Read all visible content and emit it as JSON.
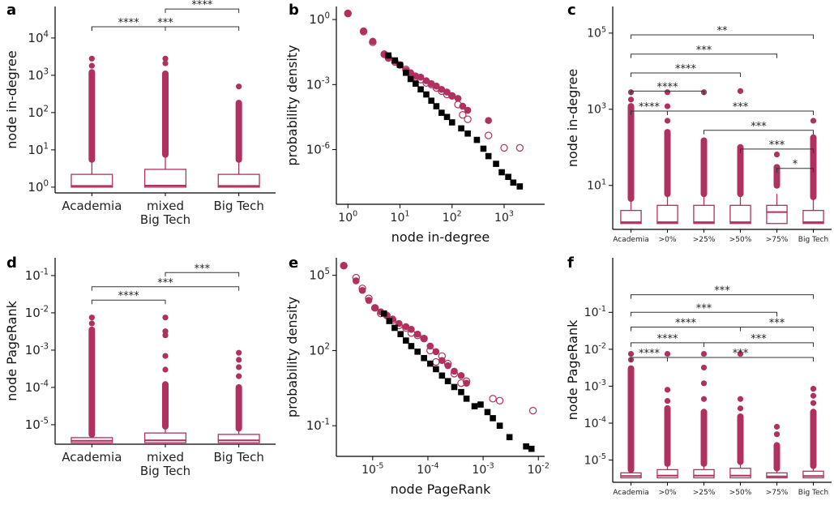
{
  "colors": {
    "accent": "#b03060",
    "black": "#000000"
  },
  "chart_data": [
    {
      "panel": "a",
      "type": "boxplot",
      "categories": [
        "Academia",
        "mixed\nBig Tech",
        "Big Tech"
      ],
      "ylabel": "node in-degree",
      "log": true,
      "ylim": [
        0.7,
        70000
      ],
      "yticks": [
        1,
        10,
        100,
        1000,
        10000
      ],
      "ytick_labels": [
        [
          "10",
          "0"
        ],
        [
          "10",
          "1"
        ],
        [
          "10",
          "2"
        ],
        [
          "10",
          "3"
        ],
        [
          "10",
          "4"
        ]
      ],
      "boxes": [
        {
          "q1": 1.0,
          "med": 1.08,
          "q3": 2.2,
          "wlo": 1.0,
          "whi": 5.5,
          "out_lo": 5.5,
          "out_hi": 1200,
          "extra": [
            1800,
            2800
          ]
        },
        {
          "q1": 1.0,
          "med": 1.1,
          "q3": 3.0,
          "wlo": 1.0,
          "whi": 7.5,
          "out_lo": 7.5,
          "out_hi": 1100,
          "extra": [
            2100,
            2800
          ]
        },
        {
          "q1": 1.0,
          "med": 1.08,
          "q3": 2.2,
          "wlo": 1.0,
          "whi": 5.5,
          "out_lo": 5.5,
          "out_hi": 180,
          "extra": [
            500
          ]
        }
      ],
      "brackets": [
        {
          "from": 0,
          "to": 1,
          "y": 20000.0,
          "label": "****"
        },
        {
          "from": 0,
          "to": 2,
          "y": 20000.0,
          "label": "***"
        },
        {
          "from": 1,
          "to": 2,
          "y": 60000.0,
          "label": "****"
        }
      ]
    },
    {
      "panel": "b",
      "type": "scatter",
      "xlabel": "node in-degree",
      "ylabel": "probability density",
      "xlog": true,
      "ylog": true,
      "xlim": [
        0.6,
        6000
      ],
      "ylim": [
        3e-09,
        4
      ],
      "xticks": [
        1,
        10,
        100,
        1000
      ],
      "xtick_labels": [
        [
          "10",
          "0"
        ],
        [
          "10",
          "1"
        ],
        [
          "10",
          "2"
        ],
        [
          "10",
          "3"
        ]
      ],
      "yticks": [
        1,
        0.001,
        1e-06
      ],
      "ytick_labels": [
        [
          "10",
          "0"
        ],
        [
          "10",
          "-3"
        ],
        [
          "10",
          "-6"
        ]
      ],
      "series": [
        {
          "marker": "filled-circle",
          "x": [
            1,
            2,
            3,
            5,
            6,
            8,
            10,
            13,
            16,
            20,
            25,
            32,
            40,
            50,
            63,
            80,
            100,
            130,
            160,
            200,
            500
          ],
          "y": [
            2.0,
            0.3,
            0.1,
            0.026,
            0.018,
            0.012,
            0.008,
            0.0045,
            0.0035,
            0.0025,
            0.0022,
            0.0015,
            0.0011,
            0.00085,
            0.0006,
            0.00045,
            0.0003,
            0.00023,
            0.0001,
            6.5e-05,
            2.2e-05
          ]
        },
        {
          "marker": "open-circle",
          "x": [
            1,
            2,
            3,
            5,
            6,
            8,
            10,
            13,
            16,
            20,
            25,
            32,
            40,
            50,
            63,
            80,
            100,
            130,
            160,
            200,
            500,
            1000,
            2000
          ],
          "y": [
            1.9,
            0.28,
            0.09,
            0.025,
            0.017,
            0.011,
            0.008,
            0.005,
            0.0032,
            0.0022,
            0.0017,
            0.0012,
            0.001,
            0.0007,
            0.0005,
            0.00035,
            0.0003,
            0.00012,
            4e-05,
            2.5e-05,
            4.5e-06,
            1.2e-06,
            1.2e-06
          ]
        },
        {
          "marker": "filled-square",
          "x": [
            6,
            8,
            10,
            13,
            16,
            20,
            25,
            32,
            40,
            50,
            63,
            80,
            100,
            150,
            200,
            300,
            400,
            500,
            700,
            900,
            1200,
            1500,
            2000
          ],
          "y": [
            0.022,
            0.013,
            0.008,
            0.0035,
            0.0018,
            0.0011,
            0.0006,
            0.00035,
            0.00018,
            0.0001,
            5e-05,
            3.2e-05,
            1.8e-05,
            9.5e-06,
            5.5e-06,
            2.8e-06,
            1.1e-06,
            5e-07,
            2.2e-07,
            9e-08,
            5.5e-08,
            3e-08,
            2e-08
          ]
        }
      ]
    },
    {
      "panel": "c",
      "type": "boxplot",
      "categories": [
        "Academia",
        ">0%",
        ">25%",
        ">50%",
        ">75%",
        "Big Tech"
      ],
      "ylabel": "node in-degree",
      "log": true,
      "ylim": [
        0.7,
        500000
      ],
      "yticks": [
        10,
        1000,
        100000
      ],
      "ytick_labels": [
        [
          "10",
          "1"
        ],
        [
          "10",
          "3"
        ],
        [
          "10",
          "5"
        ]
      ],
      "boxes": [
        {
          "q1": 1.0,
          "med": 1.08,
          "q3": 2.2,
          "wlo": 1.0,
          "whi": 4.5,
          "out_lo": 4.5,
          "out_hi": 1200,
          "extra": [
            1800,
            2800
          ]
        },
        {
          "q1": 1.0,
          "med": 1.08,
          "q3": 3.0,
          "wlo": 1.0,
          "whi": 6.0,
          "out_lo": 6.0,
          "out_hi": 250,
          "extra": [
            500,
            1200,
            2800
          ]
        },
        {
          "q1": 1.0,
          "med": 1.08,
          "q3": 3.0,
          "wlo": 1.0,
          "whi": 6.0,
          "out_lo": 6.0,
          "out_hi": 150,
          "extra": [
            2800
          ]
        },
        {
          "q1": 1.0,
          "med": 1.08,
          "q3": 3.0,
          "wlo": 1.0,
          "whi": 6.0,
          "out_lo": 6.0,
          "out_hi": 100,
          "extra": [
            3000
          ]
        },
        {
          "q1": 1.0,
          "med": 2.0,
          "q3": 3.0,
          "wlo": 1.0,
          "whi": 6.0,
          "out_lo": 10,
          "out_hi": 30,
          "extra": [
            65
          ]
        },
        {
          "q1": 1.0,
          "med": 1.08,
          "q3": 2.2,
          "wlo": 1.0,
          "whi": 5.0,
          "out_lo": 5.0,
          "out_hi": 180,
          "extra": [
            500
          ]
        }
      ],
      "brackets": [
        {
          "from": 0,
          "to": 1,
          "y": 900,
          "label": "****"
        },
        {
          "from": 0,
          "to": 2,
          "y": 3000,
          "label": "****"
        },
        {
          "from": 0,
          "to": 3,
          "y": 9000,
          "label": "****"
        },
        {
          "from": 0,
          "to": 4,
          "y": 28000,
          "label": "***"
        },
        {
          "from": 0,
          "to": 5,
          "y": 90000,
          "label": "**"
        },
        {
          "from": 1,
          "to": 5,
          "y": 900,
          "label": "***"
        },
        {
          "from": 2,
          "to": 5,
          "y": 280,
          "label": "***"
        },
        {
          "from": 3,
          "to": 5,
          "y": 90,
          "label": "***"
        },
        {
          "from": 4,
          "to": 5,
          "y": 28,
          "label": "*"
        }
      ]
    },
    {
      "panel": "d",
      "type": "boxplot",
      "categories": [
        "Academia",
        "mixed\nBig Tech",
        "Big Tech"
      ],
      "ylabel": "node PageRank",
      "log": true,
      "ylim": [
        3e-06,
        0.3
      ],
      "yticks": [
        1e-05,
        0.0001,
        0.001,
        0.01,
        0.1
      ],
      "ytick_labels": [
        [
          "10",
          "-5"
        ],
        [
          "10",
          "-4"
        ],
        [
          "10",
          "-3"
        ],
        [
          "10",
          "-2"
        ],
        [
          "10",
          "-1"
        ]
      ],
      "boxes": [
        {
          "q1": 3.3e-06,
          "med": 3.7e-06,
          "q3": 4.5e-06,
          "wlo": 3.3e-06,
          "whi": 5.5e-06,
          "out_lo": 5.5e-06,
          "out_hi": 0.0035,
          "extra": [
            0.0052,
            0.0075
          ]
        },
        {
          "q1": 3.3e-06,
          "med": 3.8e-06,
          "q3": 6e-06,
          "wlo": 3.3e-06,
          "whi": 9e-06,
          "out_lo": 9e-06,
          "out_hi": 0.00012,
          "extra": [
            0.0003,
            0.0007,
            0.0025,
            0.0032,
            0.0075
          ]
        },
        {
          "q1": 3.3e-06,
          "med": 3.8e-06,
          "q3": 5.5e-06,
          "wlo": 3.3e-06,
          "whi": 8e-06,
          "out_lo": 8e-06,
          "out_hi": 0.0001,
          "extra": [
            0.0002,
            0.00035,
            0.00055,
            0.00085
          ]
        }
      ],
      "brackets": [
        {
          "from": 0,
          "to": 1,
          "y": 0.022,
          "label": "****"
        },
        {
          "from": 0,
          "to": 2,
          "y": 0.05,
          "label": "***"
        },
        {
          "from": 1,
          "to": 2,
          "y": 0.12,
          "label": "***"
        }
      ]
    },
    {
      "panel": "e",
      "type": "scatter",
      "xlabel": "node PageRank",
      "ylabel": "probability density",
      "xlog": true,
      "ylog": true,
      "xlim": [
        2.2e-06,
        0.013
      ],
      "ylim": [
        0.006,
        500000
      ],
      "xticks": [
        1e-05,
        0.0001,
        0.001,
        0.01
      ],
      "xtick_labels": [
        [
          "10",
          "-5"
        ],
        [
          "10",
          "-4"
        ],
        [
          "10",
          "-3"
        ],
        [
          "10",
          "-2"
        ]
      ],
      "yticks": [
        100000,
        100,
        0.1
      ],
      "ytick_labels": [
        [
          "10",
          "5"
        ],
        [
          "10",
          "2"
        ],
        [
          "10",
          "-1"
        ]
      ],
      "series": [
        {
          "marker": "filled-circle",
          "x": [
            3e-06,
            5e-06,
            6.5e-06,
            8.5e-06,
            1.1e-05,
            1.4e-05,
            1.8e-05,
            2.3e-05,
            3e-05,
            4e-05,
            5e-05,
            6.5e-05,
            8.5e-05,
            0.00011,
            0.00014,
            0.00018,
            0.00023,
            0.0003,
            0.0004,
            0.0005
          ],
          "y": [
            250000,
            60000,
            25000,
            10000,
            5000,
            3500,
            2500,
            1800,
            1200,
            900,
            700,
            450,
            300,
            150,
            90,
            40,
            25,
            15,
            10,
            5
          ]
        },
        {
          "marker": "open-circle",
          "x": [
            3e-06,
            5e-06,
            6.5e-06,
            8.5e-06,
            1.1e-05,
            1.4e-05,
            1.8e-05,
            2.3e-05,
            3e-05,
            4e-05,
            5e-05,
            6.5e-05,
            8.5e-05,
            0.00011,
            0.00014,
            0.00018,
            0.00023,
            0.0003,
            0.0004,
            0.0005,
            0.0015,
            0.002,
            0.008
          ],
          "y": [
            240000,
            80000,
            30000,
            12000,
            5000,
            3000,
            2500,
            1600,
            1000,
            800,
            500,
            400,
            300,
            100,
            35,
            60,
            30,
            12,
            5,
            6,
            1.2,
            1.0,
            0.4
          ]
        },
        {
          "marker": "filled-square",
          "x": [
            1.6e-05,
            2e-05,
            2.5e-05,
            3.2e-05,
            4e-05,
            5e-05,
            6.5e-05,
            8.5e-05,
            0.00011,
            0.00014,
            0.00018,
            0.00023,
            0.0003,
            0.0004,
            0.0005,
            0.0007,
            0.0009,
            0.0012,
            0.0015,
            0.002,
            0.003,
            0.006,
            0.0075
          ],
          "y": [
            3000,
            1500,
            800,
            450,
            250,
            150,
            90,
            50,
            30,
            18,
            10,
            6,
            3.5,
            2.2,
            1.2,
            0.6,
            0.7,
            0.35,
            0.2,
            0.1,
            0.035,
            0.015,
            0.012
          ]
        }
      ]
    },
    {
      "panel": "f",
      "type": "boxplot",
      "categories": [
        "Academia",
        ">0%",
        ">25%",
        ">50%",
        ">75%",
        "Big Tech"
      ],
      "ylabel": "node PageRank",
      "log": true,
      "ylim": [
        2.5e-06,
        3
      ],
      "yticks": [
        1e-05,
        0.0001,
        0.001,
        0.01,
        0.1
      ],
      "ytick_labels": [
        [
          "10",
          "-5"
        ],
        [
          "10",
          "-4"
        ],
        [
          "10",
          "-3"
        ],
        [
          "10",
          "-2"
        ],
        [
          "10",
          "-1"
        ]
      ],
      "boxes": [
        {
          "q1": 3.3e-06,
          "med": 3.7e-06,
          "q3": 4.5e-06,
          "wlo": 3.3e-06,
          "whi": 5.5e-06,
          "out_lo": 5.5e-06,
          "out_hi": 0.003,
          "extra": [
            0.0052,
            0.0075
          ]
        },
        {
          "q1": 3.3e-06,
          "med": 3.8e-06,
          "q3": 5.5e-06,
          "wlo": 3.3e-06,
          "whi": 8e-06,
          "out_lo": 8e-06,
          "out_hi": 0.00025,
          "extra": [
            0.0004,
            0.0008,
            0.0075
          ]
        },
        {
          "q1": 3.3e-06,
          "med": 3.8e-06,
          "q3": 5.5e-06,
          "wlo": 3.3e-06,
          "whi": 8e-06,
          "out_lo": 8e-06,
          "out_hi": 0.0002,
          "extra": [
            0.00045,
            0.0012,
            0.0032,
            0.0075
          ]
        },
        {
          "q1": 3.3e-06,
          "med": 3.8e-06,
          "q3": 6e-06,
          "wlo": 3.3e-06,
          "whi": 9e-06,
          "out_lo": 9e-06,
          "out_hi": 0.00015,
          "extra": [
            0.00025,
            0.00045,
            0.0075
          ]
        },
        {
          "q1": 3.3e-06,
          "med": 3.6e-06,
          "q3": 4.5e-06,
          "wlo": 3.3e-06,
          "whi": 5.5e-06,
          "out_lo": 6e-06,
          "out_hi": 2.5e-05,
          "extra": [
            5e-05,
            8e-05
          ]
        },
        {
          "q1": 3.3e-06,
          "med": 3.7e-06,
          "q3": 5e-06,
          "wlo": 3.3e-06,
          "whi": 7e-06,
          "out_lo": 7e-06,
          "out_hi": 0.0002,
          "extra": [
            0.00035,
            0.00055,
            0.00085
          ]
        }
      ],
      "brackets": [
        {
          "from": 0,
          "to": 1,
          "y": 0.006,
          "label": "****"
        },
        {
          "from": 0,
          "to": 2,
          "y": 0.015,
          "label": "****"
        },
        {
          "from": 0,
          "to": 3,
          "y": 0.04,
          "label": "****"
        },
        {
          "from": 0,
          "to": 4,
          "y": 0.1,
          "label": "***"
        },
        {
          "from": 0,
          "to": 5,
          "y": 0.3,
          "label": "***"
        },
        {
          "from": 1,
          "to": 5,
          "y": 0.006,
          "label": "***"
        },
        {
          "from": 2,
          "to": 5,
          "y": 0.015,
          "label": "***"
        },
        {
          "from": 3,
          "to": 5,
          "y": 0.04,
          "label": "***"
        }
      ]
    }
  ]
}
